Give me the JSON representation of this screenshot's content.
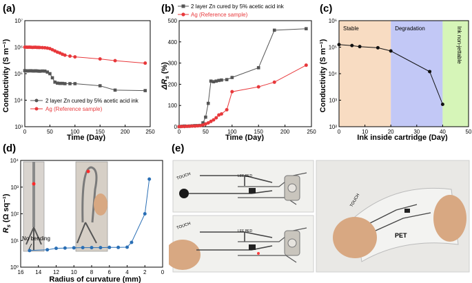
{
  "panels": {
    "a": "(a)",
    "b": "(b)",
    "c": "(c)",
    "d": "(d)",
    "e": "(e)"
  },
  "colors": {
    "zn": "#555555",
    "ag": "#e8383b",
    "c_line": "#111111",
    "d_line": "#2a6fb5",
    "stable": "#f8dcc2",
    "degradation": "#c2c8f6",
    "nonjet": "#d6f5b8"
  },
  "chart_data": [
    {
      "id": "a",
      "type": "line",
      "xlabel": "Time (Day)",
      "ylabel": "Conductivity (S m⁻¹)",
      "xlim": [
        0,
        250
      ],
      "ylim": [
        1000,
        10000000
      ],
      "yscale": "log",
      "xticks": [
        "0",
        "50",
        "100",
        "150",
        "200",
        "250"
      ],
      "yticks": [
        "10³",
        "10⁴",
        "10⁵",
        "10⁶",
        "10⁷"
      ],
      "legend_position": "bottom-center",
      "series": [
        {
          "name": "2 layer Zn cured by 5% acetic acid ink",
          "color": "#555555",
          "marker": "square",
          "x": [
            0,
            3,
            6,
            9,
            12,
            15,
            18,
            21,
            24,
            27,
            30,
            35,
            40,
            45,
            50,
            55,
            60,
            65,
            70,
            75,
            80,
            90,
            100,
            150,
            180,
            240
          ],
          "y": [
            130000,
            128000,
            127000,
            128000,
            129000,
            127000,
            126000,
            128000,
            127000,
            125000,
            124000,
            126000,
            125000,
            115000,
            100000,
            70000,
            48000,
            44000,
            43000,
            43000,
            42000,
            42000,
            42000,
            35000,
            24000,
            23000
          ]
        },
        {
          "name": "Ag (Reference sample)",
          "color": "#e8383b",
          "marker": "circle",
          "x": [
            0,
            3,
            6,
            9,
            12,
            15,
            18,
            21,
            24,
            27,
            30,
            35,
            40,
            45,
            50,
            55,
            60,
            65,
            70,
            75,
            80,
            90,
            100,
            150,
            180,
            240
          ],
          "y": [
            1000000,
            1000000,
            990000,
            1000000,
            990000,
            980000,
            985000,
            990000,
            980000,
            975000,
            970000,
            960000,
            950000,
            920000,
            880000,
            800000,
            720000,
            650000,
            600000,
            540000,
            500000,
            460000,
            430000,
            360000,
            310000,
            250000
          ]
        }
      ]
    },
    {
      "id": "b",
      "type": "line",
      "xlabel": "Time (Day)",
      "ylabel_sym": "ΔR",
      "ylabel_sub": "s",
      "ylabel_rest": " (%)",
      "xlim": [
        0,
        250
      ],
      "ylim": [
        0,
        500
      ],
      "xticks": [
        "0",
        "50",
        "100",
        "150",
        "200",
        "250"
      ],
      "yticks": [
        "0",
        "100",
        "200",
        "300",
        "400",
        "500"
      ],
      "legend_position": "top-left",
      "series": [
        {
          "name": "2 layer Zn cured by 5% acetic acid ink",
          "color": "#555555",
          "marker": "square",
          "x": [
            0,
            5,
            10,
            15,
            20,
            25,
            30,
            35,
            40,
            45,
            50,
            55,
            60,
            65,
            70,
            75,
            80,
            90,
            100,
            150,
            180,
            240
          ],
          "y": [
            0,
            2,
            3,
            2,
            3,
            4,
            5,
            5,
            6,
            18,
            45,
            110,
            215,
            212,
            215,
            218,
            220,
            222,
            232,
            278,
            455,
            462
          ]
        },
        {
          "name": "Ag (Reference sample)",
          "color": "#e8383b",
          "marker": "circle",
          "x": [
            0,
            5,
            10,
            15,
            20,
            25,
            30,
            35,
            40,
            45,
            50,
            55,
            60,
            65,
            70,
            75,
            80,
            90,
            100,
            150,
            180,
            240
          ],
          "y": [
            0,
            1,
            1,
            2,
            2,
            3,
            3,
            4,
            5,
            8,
            13,
            18,
            25,
            32,
            42,
            55,
            60,
            80,
            165,
            188,
            210,
            290
          ]
        }
      ]
    },
    {
      "id": "c",
      "type": "line",
      "xlabel": "Ink inside cartridge (Day)",
      "ylabel": "Conductivity (S m⁻¹)",
      "xlim": [
        0,
        50
      ],
      "ylim": [
        100,
        1000000
      ],
      "yscale": "log",
      "xticks": [
        "0",
        "10",
        "20",
        "30",
        "40",
        "50"
      ],
      "yticks": [
        "10²",
        "10³",
        "10⁴",
        "10⁵",
        "10⁶"
      ],
      "regions": [
        {
          "label": "Stable",
          "from": 0,
          "to": 20
        },
        {
          "label": "Degradation",
          "from": 20,
          "to": 40
        },
        {
          "label": "Ink non-jettable",
          "from": 40,
          "to": 50
        }
      ],
      "series": [
        {
          "color": "#111111",
          "marker": "circle",
          "x": [
            0,
            5,
            8,
            15,
            20,
            35,
            40
          ],
          "y": [
            125000,
            115000,
            105000,
            95000,
            72000,
            12000,
            700
          ]
        }
      ]
    },
    {
      "id": "d",
      "type": "line",
      "xlabel": "Radius of curvature (mm)",
      "ylabel_sym": "R",
      "ylabel_sub": "s",
      "ylabel_rest": " (Ω sq⁻¹)",
      "xlim": [
        16,
        0
      ],
      "ylim": [
        1,
        10000
      ],
      "yscale": "log",
      "xticks": [
        "16",
        "14",
        "12",
        "10",
        "8",
        "6",
        "4",
        "2",
        "0"
      ],
      "yticks": [
        "10⁰",
        "10¹",
        "10²",
        "10³",
        "10⁴"
      ],
      "annotation": "No bending",
      "series": [
        {
          "color": "#2a6fb5",
          "marker": "circle",
          "x": [
            15,
            13,
            12,
            11,
            10,
            9,
            8,
            7,
            6,
            5,
            4,
            3.5,
            2,
            1.5
          ],
          "y": [
            4.2,
            4.5,
            5.1,
            5.2,
            5.3,
            5.4,
            5.4,
            5.4,
            5.5,
            5.5,
            5.6,
            8.5,
            100,
            2000
          ]
        }
      ]
    }
  ],
  "photos": {
    "e1": {
      "touch": "TOUCH",
      "sign": "LEE BED"
    },
    "e2": {
      "touch": "TOUCH",
      "sign": "LEE BED"
    },
    "e3": {
      "touch": "TOUCH",
      "pet": "PET"
    }
  }
}
